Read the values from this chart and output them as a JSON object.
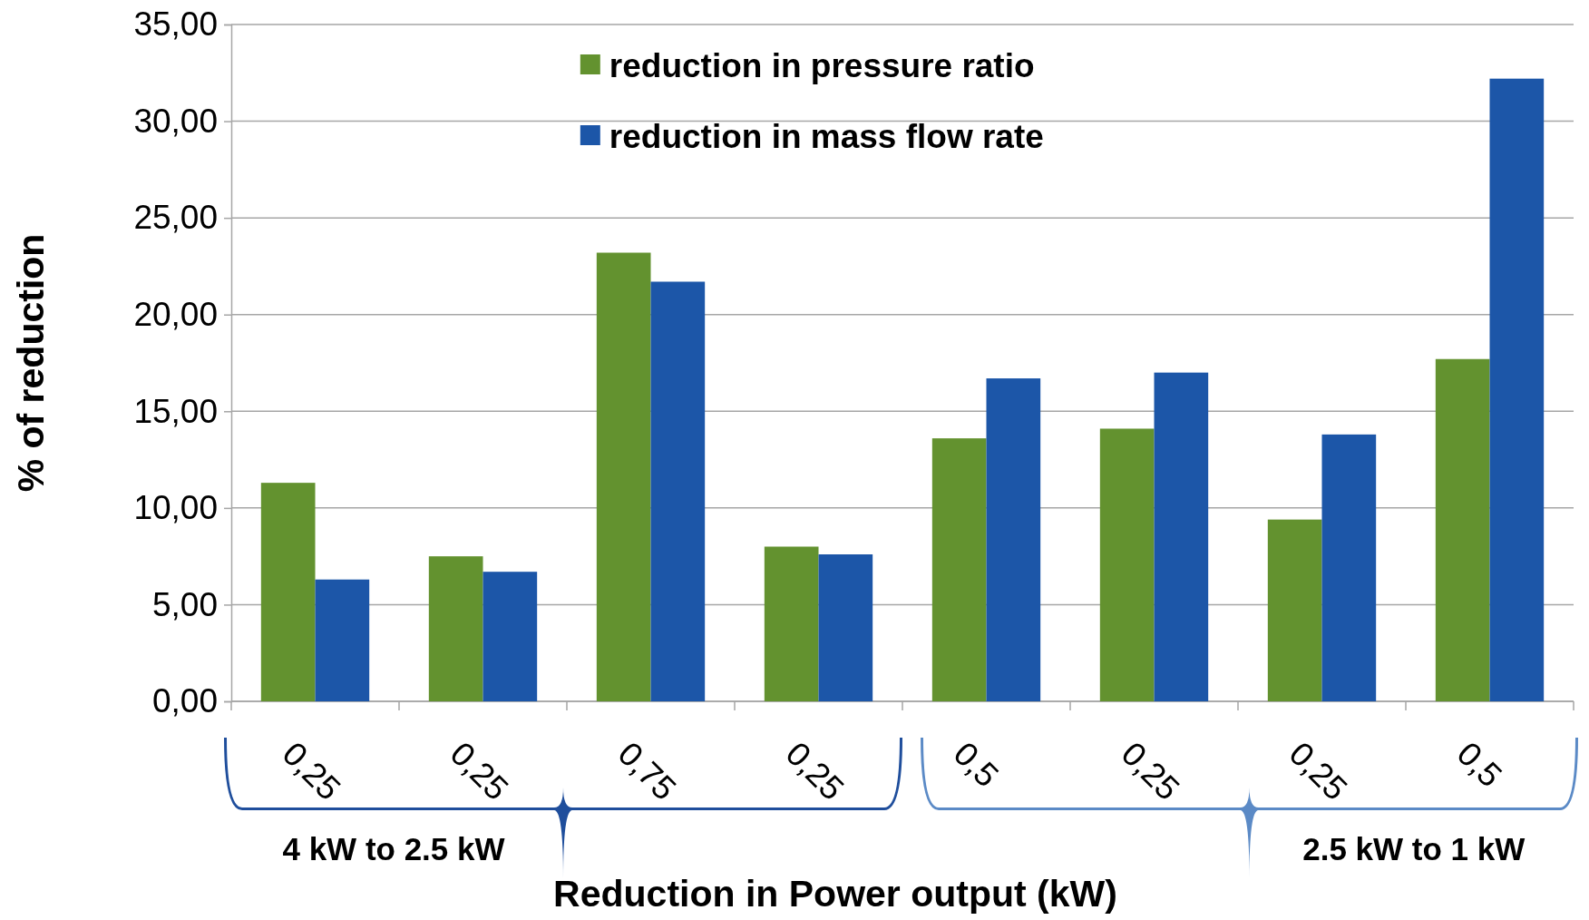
{
  "chart_data": {
    "type": "bar",
    "ylabel": "% of reduction",
    "xlabel": "Reduction in Power output (kW)",
    "categories": [
      "0,25",
      "0,25",
      "0,75",
      "0,25",
      "0,5",
      "0,25",
      "0,25",
      "0,5"
    ],
    "series": [
      {
        "name": "reduction in pressure ratio",
        "color": "#63922f",
        "values": [
          11.3,
          7.5,
          23.2,
          8.0,
          13.6,
          14.1,
          9.4,
          17.7
        ]
      },
      {
        "name": "reduction in mass flow rate",
        "color": "#1c56a8",
        "values": [
          6.3,
          6.7,
          21.7,
          7.6,
          16.7,
          17.0,
          13.8,
          32.2
        ]
      }
    ],
    "ylim": [
      0,
      35
    ],
    "yticks": [
      {
        "value": 0,
        "label": "0,00"
      },
      {
        "value": 5,
        "label": "5,00"
      },
      {
        "value": 10,
        "label": "10,00"
      },
      {
        "value": 15,
        "label": "15,00"
      },
      {
        "value": 20,
        "label": "20,00"
      },
      {
        "value": 25,
        "label": "25,00"
      },
      {
        "value": 30,
        "label": "30,00"
      },
      {
        "value": 35,
        "label": "35,00"
      }
    ],
    "grid": "y",
    "legend": "top",
    "annotations": [
      "4 kW to 2.5 kW",
      "2.5 kW to 1 kW"
    ]
  }
}
